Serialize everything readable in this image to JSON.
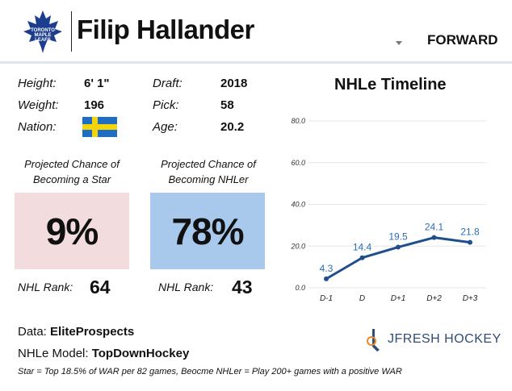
{
  "header": {
    "logo_text": "TORONTO MAPLE LEAFS",
    "player_name": "Filip Hallander",
    "position": "FORWARD"
  },
  "bio": {
    "height_label": "Height:",
    "height": "6' 1\"",
    "weight_label": "Weight:",
    "weight": "196",
    "nation_label": "Nation:",
    "nation_flag": "sweden-flag-icon",
    "draft_label": "Draft:",
    "draft": "2018",
    "pick_label": "Pick:",
    "pick": "58",
    "age_label": "Age:",
    "age": "20.2"
  },
  "projections": {
    "star": {
      "caption_line1": "Projected Chance of",
      "caption_line2": "Becoming a Star",
      "value": "9%",
      "rank_label": "NHL Rank:",
      "rank": "64",
      "color": "#f3dcdd"
    },
    "nhler": {
      "caption_line1": "Projected Chance of",
      "caption_line2": "Becoming NHLer",
      "value": "78%",
      "rank_label": "NHL Rank:",
      "rank": "43",
      "color": "#a8c9ec"
    }
  },
  "chart_data": {
    "type": "line",
    "title": "NHLe Timeline",
    "categories": [
      "D-1",
      "D",
      "D+1",
      "D+2",
      "D+3"
    ],
    "series": [
      {
        "values": [
          4.3,
          14.4,
          19.5,
          24.1,
          21.8
        ]
      }
    ],
    "data_labels": [
      "4.3",
      "14.4",
      "19.5",
      "24.1",
      "21.8"
    ],
    "yticks": [
      "0.0",
      "20.0",
      "40.0",
      "60.0",
      "80.0"
    ],
    "ylim": [
      0,
      80
    ],
    "grid": true,
    "line_color": "#1f4e8c",
    "label_color": "#2a6db5"
  },
  "footer": {
    "data_label": "Data:",
    "data_value": "EliteProspects",
    "model_label": "NHLe Model:",
    "model_value": "TopDownHockey",
    "note": "Star = Top 18.5% of WAR per 82 games, Beocme NHLer = Play 200+ games with a positive WAR",
    "brand": "JFRESH HOCKEY"
  }
}
